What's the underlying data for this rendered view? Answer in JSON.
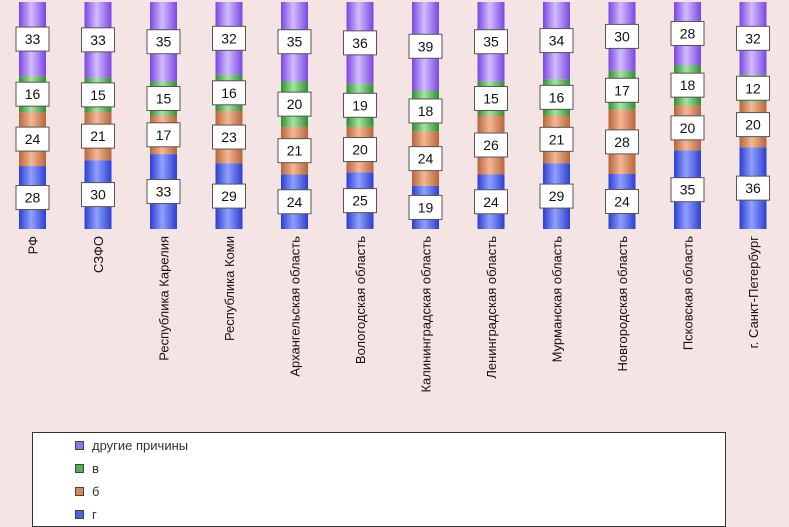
{
  "chart_data": {
    "type": "bar",
    "stacked": true,
    "categories": [
      "РФ",
      "СЗФО",
      "Республика Карелия",
      "Республика Коми",
      "Архангельская область",
      "Вологодская область",
      "Калининградская область",
      "Ленинградская область",
      "Мурманская область",
      "Новгородская область",
      "Псковская область",
      "г. Санкт-Петербург"
    ],
    "series": [
      {
        "name": "г",
        "color": "#4a63e6",
        "values": [
          28,
          30,
          33,
          29,
          24,
          25,
          19,
          24,
          29,
          24,
          35,
          36
        ]
      },
      {
        "name": "б",
        "color": "#d8895a",
        "values": [
          24,
          21,
          17,
          23,
          21,
          20,
          24,
          26,
          21,
          28,
          20,
          20
        ]
      },
      {
        "name": "в",
        "color": "#4fb14f",
        "values": [
          16,
          15,
          15,
          16,
          20,
          19,
          18,
          15,
          16,
          17,
          18,
          12
        ]
      },
      {
        "name": "другие причины",
        "color": "#9b6ff0",
        "values": [
          33,
          33,
          35,
          32,
          35,
          36,
          39,
          35,
          34,
          30,
          28,
          32
        ]
      }
    ],
    "ylim": [
      0,
      100
    ],
    "legend_position": "bottom"
  }
}
